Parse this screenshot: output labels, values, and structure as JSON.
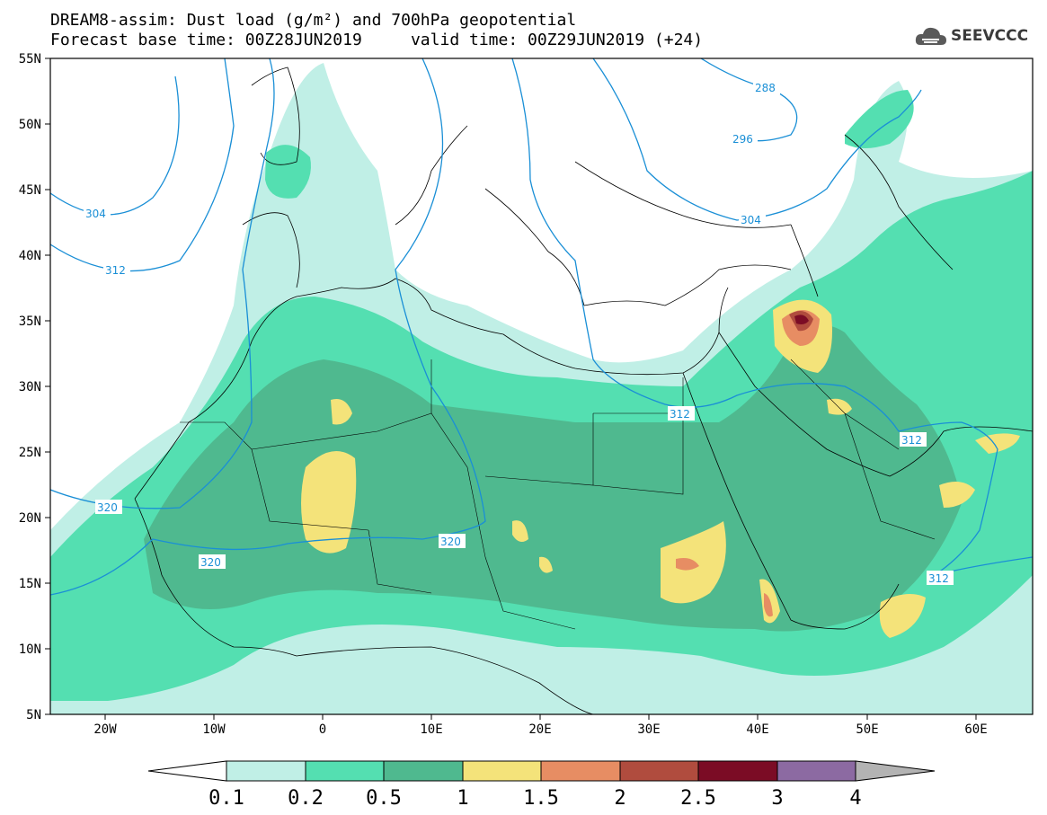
{
  "title": {
    "line1": "DREAM8-assim: Dust load (g/m²) and 700hPa geopotential",
    "line2": "Forecast base time: 00Z28JUN2019     valid time: 00Z29JUN2019 (+24)"
  },
  "logo": {
    "text": "SEEVCCC",
    "icon": "cloud-icon"
  },
  "axes": {
    "lat_labels": [
      "55N",
      "50N",
      "45N",
      "40N",
      "35N",
      "30N",
      "25N",
      "20N",
      "15N",
      "10N",
      "5N"
    ],
    "lon_labels": [
      "20W",
      "10W",
      "0",
      "10E",
      "20E",
      "30E",
      "40E",
      "50E",
      "60E"
    ]
  },
  "contours": {
    "labels": [
      "288",
      "296",
      "304",
      "304",
      "312",
      "312",
      "312",
      "320",
      "320",
      "320",
      "312"
    ]
  },
  "colorbar": {
    "labels": [
      "0.1",
      "0.2",
      "0.5",
      "1",
      "1.5",
      "2",
      "2.5",
      "3",
      "4"
    ],
    "colors": [
      "#c0efe6",
      "#54dfb1",
      "#4fb98f",
      "#f4e37a",
      "#e78d63",
      "#b04c3e",
      "#7b0c25",
      "#8c6aa2",
      "#b3b3b3"
    ]
  }
}
